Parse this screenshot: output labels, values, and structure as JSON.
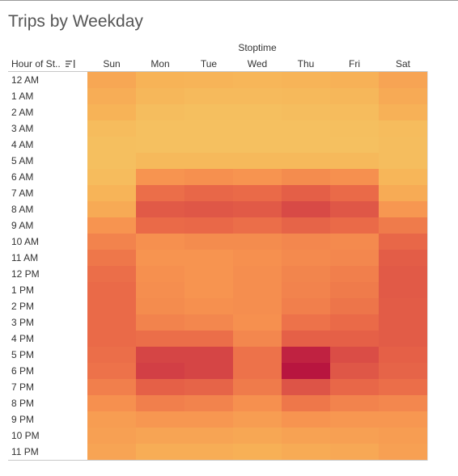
{
  "title": "Trips by Weekday",
  "chart_data": {
    "type": "heatmap",
    "title": "Trips by Weekday",
    "column_group_label": "Stoptime",
    "row_header_label": "Hour of St..",
    "columns": [
      "Sun",
      "Mon",
      "Tue",
      "Wed",
      "Thu",
      "Fri",
      "Sat"
    ],
    "rows": [
      "12 AM",
      "1 AM",
      "2 AM",
      "3 AM",
      "4 AM",
      "5 AM",
      "6 AM",
      "7 AM",
      "8 AM",
      "9 AM",
      "10 AM",
      "11 AM",
      "12 PM",
      "1 PM",
      "2 PM",
      "3 PM",
      "4 PM",
      "5 PM",
      "6 PM",
      "7 PM",
      "8 PM",
      "9 PM",
      "10 PM",
      "11 PM"
    ],
    "value_scale": "relative trip volume, 0 (lowest) to 1 (highest), estimated from color",
    "values": [
      [
        0.28,
        0.2,
        0.19,
        0.18,
        0.19,
        0.21,
        0.3
      ],
      [
        0.24,
        0.17,
        0.15,
        0.15,
        0.16,
        0.17,
        0.26
      ],
      [
        0.2,
        0.13,
        0.12,
        0.12,
        0.13,
        0.14,
        0.21
      ],
      [
        0.14,
        0.11,
        0.11,
        0.11,
        0.11,
        0.12,
        0.14
      ],
      [
        0.12,
        0.11,
        0.11,
        0.11,
        0.11,
        0.11,
        0.13
      ],
      [
        0.12,
        0.16,
        0.16,
        0.16,
        0.16,
        0.16,
        0.13
      ],
      [
        0.14,
        0.4,
        0.42,
        0.4,
        0.44,
        0.42,
        0.18
      ],
      [
        0.19,
        0.58,
        0.62,
        0.6,
        0.67,
        0.6,
        0.25
      ],
      [
        0.26,
        0.7,
        0.72,
        0.7,
        0.8,
        0.72,
        0.38
      ],
      [
        0.4,
        0.6,
        0.61,
        0.58,
        0.64,
        0.6,
        0.52
      ],
      [
        0.48,
        0.42,
        0.44,
        0.44,
        0.46,
        0.45,
        0.62
      ],
      [
        0.54,
        0.4,
        0.4,
        0.42,
        0.45,
        0.46,
        0.68
      ],
      [
        0.58,
        0.42,
        0.4,
        0.43,
        0.47,
        0.5,
        0.7
      ],
      [
        0.6,
        0.43,
        0.4,
        0.43,
        0.48,
        0.52,
        0.7
      ],
      [
        0.6,
        0.44,
        0.42,
        0.43,
        0.5,
        0.55,
        0.69
      ],
      [
        0.6,
        0.48,
        0.46,
        0.42,
        0.56,
        0.6,
        0.69
      ],
      [
        0.6,
        0.58,
        0.58,
        0.46,
        0.66,
        0.66,
        0.69
      ],
      [
        0.58,
        0.82,
        0.82,
        0.56,
        0.95,
        0.78,
        0.66
      ],
      [
        0.56,
        0.84,
        0.82,
        0.56,
        1.0,
        0.72,
        0.64
      ],
      [
        0.5,
        0.66,
        0.64,
        0.52,
        0.74,
        0.62,
        0.58
      ],
      [
        0.42,
        0.5,
        0.48,
        0.42,
        0.54,
        0.48,
        0.46
      ],
      [
        0.34,
        0.38,
        0.38,
        0.34,
        0.4,
        0.38,
        0.38
      ],
      [
        0.32,
        0.3,
        0.3,
        0.28,
        0.31,
        0.32,
        0.34
      ],
      [
        0.3,
        0.24,
        0.24,
        0.22,
        0.25,
        0.27,
        0.32
      ]
    ],
    "color_stops": [
      "#f2d06b",
      "#f7b357",
      "#f79450",
      "#ea6a48",
      "#d84a46",
      "#b8153f"
    ],
    "legend": "none",
    "grid": false
  }
}
